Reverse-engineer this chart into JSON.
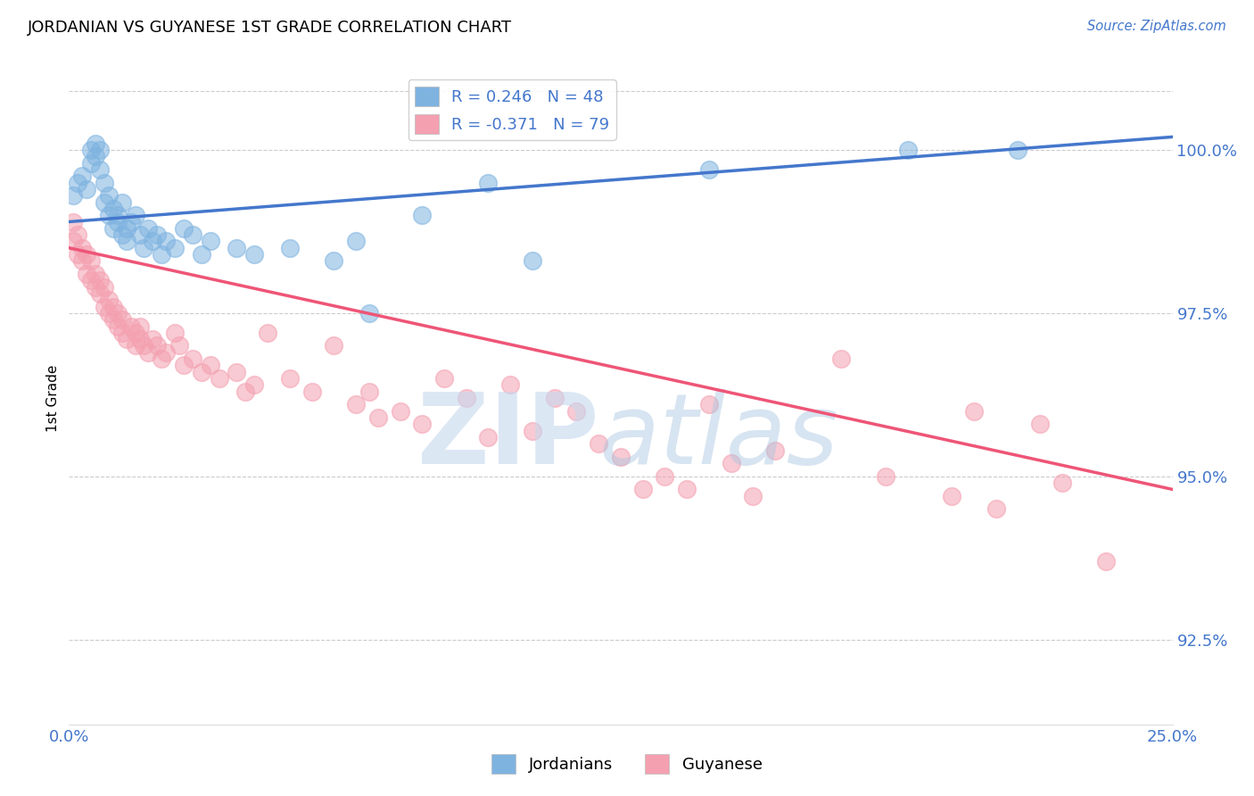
{
  "title": "JORDANIAN VS GUYANESE 1ST GRADE CORRELATION CHART",
  "source": "Source: ZipAtlas.com",
  "ylabel": "1st Grade",
  "x_min": 0.0,
  "x_max": 0.25,
  "y_min": 91.2,
  "y_max": 101.2,
  "y_ticks": [
    92.5,
    95.0,
    97.5,
    100.0
  ],
  "y_tick_labels": [
    "92.5%",
    "95.0%",
    "97.5%",
    "100.0%"
  ],
  "x_ticks": [
    0.0,
    0.05,
    0.1,
    0.15,
    0.2,
    0.25
  ],
  "blue_R": 0.246,
  "blue_N": 48,
  "pink_R": -0.371,
  "pink_N": 79,
  "blue_color": "#7EB3E0",
  "pink_color": "#F4A0B0",
  "blue_line_color": "#4477CC",
  "pink_line_color": "#EE5577",
  "legend_label_blue": "Jordanians",
  "legend_label_pink": "Guyanese",
  "background_color": "#FFFFFF",
  "blue_line_x0": 0.0,
  "blue_line_y0": 98.9,
  "blue_line_x1": 0.25,
  "blue_line_y1": 100.2,
  "pink_line_x0": 0.0,
  "pink_line_y0": 98.5,
  "pink_line_x1": 0.25,
  "pink_line_y1": 94.8,
  "blue_dots_x": [
    0.001,
    0.002,
    0.003,
    0.004,
    0.005,
    0.005,
    0.006,
    0.006,
    0.007,
    0.007,
    0.008,
    0.008,
    0.009,
    0.009,
    0.01,
    0.01,
    0.011,
    0.011,
    0.012,
    0.012,
    0.013,
    0.013,
    0.014,
    0.015,
    0.016,
    0.017,
    0.018,
    0.019,
    0.02,
    0.021,
    0.022,
    0.024,
    0.026,
    0.028,
    0.03,
    0.032,
    0.038,
    0.042,
    0.05,
    0.06,
    0.065,
    0.068,
    0.08,
    0.095,
    0.105,
    0.145,
    0.19,
    0.215
  ],
  "blue_dots_y": [
    99.3,
    99.5,
    99.6,
    99.4,
    99.8,
    100.0,
    100.1,
    99.9,
    100.0,
    99.7,
    99.5,
    99.2,
    99.0,
    99.3,
    99.1,
    98.8,
    98.9,
    99.0,
    99.2,
    98.7,
    98.8,
    98.6,
    98.9,
    99.0,
    98.7,
    98.5,
    98.8,
    98.6,
    98.7,
    98.4,
    98.6,
    98.5,
    98.8,
    98.7,
    98.4,
    98.6,
    98.5,
    98.4,
    98.5,
    98.3,
    98.6,
    97.5,
    99.0,
    99.5,
    98.3,
    99.7,
    100.0,
    100.0
  ],
  "pink_dots_x": [
    0.001,
    0.001,
    0.002,
    0.002,
    0.003,
    0.003,
    0.004,
    0.004,
    0.005,
    0.005,
    0.006,
    0.006,
    0.007,
    0.007,
    0.008,
    0.008,
    0.009,
    0.009,
    0.01,
    0.01,
    0.011,
    0.011,
    0.012,
    0.012,
    0.013,
    0.014,
    0.015,
    0.015,
    0.016,
    0.016,
    0.017,
    0.018,
    0.019,
    0.02,
    0.021,
    0.022,
    0.024,
    0.025,
    0.026,
    0.028,
    0.03,
    0.032,
    0.034,
    0.038,
    0.04,
    0.042,
    0.045,
    0.05,
    0.055,
    0.06,
    0.065,
    0.068,
    0.07,
    0.075,
    0.08,
    0.085,
    0.09,
    0.095,
    0.1,
    0.105,
    0.11,
    0.115,
    0.12,
    0.125,
    0.13,
    0.135,
    0.14,
    0.145,
    0.15,
    0.155,
    0.16,
    0.175,
    0.185,
    0.2,
    0.205,
    0.21,
    0.22,
    0.225,
    0.235
  ],
  "pink_dots_y": [
    98.6,
    98.9,
    98.4,
    98.7,
    98.3,
    98.5,
    98.1,
    98.4,
    98.0,
    98.3,
    97.9,
    98.1,
    97.8,
    98.0,
    97.6,
    97.9,
    97.5,
    97.7,
    97.4,
    97.6,
    97.3,
    97.5,
    97.2,
    97.4,
    97.1,
    97.3,
    97.0,
    97.2,
    97.1,
    97.3,
    97.0,
    96.9,
    97.1,
    97.0,
    96.8,
    96.9,
    97.2,
    97.0,
    96.7,
    96.8,
    96.6,
    96.7,
    96.5,
    96.6,
    96.3,
    96.4,
    97.2,
    96.5,
    96.3,
    97.0,
    96.1,
    96.3,
    95.9,
    96.0,
    95.8,
    96.5,
    96.2,
    95.6,
    96.4,
    95.7,
    96.2,
    96.0,
    95.5,
    95.3,
    94.8,
    95.0,
    94.8,
    96.1,
    95.2,
    94.7,
    95.4,
    96.8,
    95.0,
    94.7,
    96.0,
    94.5,
    95.8,
    94.9,
    93.7
  ]
}
